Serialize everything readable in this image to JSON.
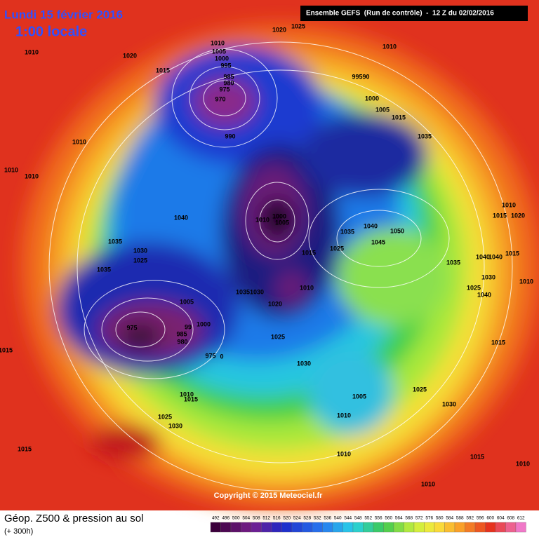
{
  "header": {
    "date": "Lundi 15 février 2016",
    "time": "1:00 locale",
    "run": "Ensemble GEFS  (Run de contrôle)  -  12 Z du 02/02/2016"
  },
  "copyright": "Copyright © 2015 Meteociel.fr",
  "footer": {
    "title": "Géop. Z500 & pression au sol",
    "lead": "(+ 300h)"
  },
  "scale": [
    492,
    496,
    500,
    504,
    508,
    512,
    516,
    520,
    524,
    528,
    532,
    536,
    540,
    544,
    548,
    552,
    556,
    560,
    564,
    568,
    572,
    576,
    580,
    584,
    588,
    592,
    596,
    600,
    604,
    608,
    612
  ],
  "isobar_labels": [
    "1010",
    "1020",
    "1015",
    "1020",
    "1025",
    "1010",
    "1010",
    "1005",
    "1000",
    "995",
    "985",
    "980",
    "975",
    "970",
    "990",
    "99590",
    "1000",
    "1005",
    "1015",
    "1035",
    "1010",
    "1010",
    "1010",
    "1040",
    "1000",
    "1010",
    "1005",
    "1035",
    "1040",
    "1050",
    "1045",
    "1025",
    "1015",
    "1035",
    "1030",
    "1025",
    "1035",
    "1035",
    "1035",
    "1030",
    "1010",
    "1020",
    "1005",
    "1000",
    "99",
    "985",
    "980",
    "975",
    "975",
    "0",
    "1025",
    "1030",
    "1005",
    "1010",
    "1010",
    "1025",
    "1030",
    "1010",
    "1015",
    "1025",
    "1030",
    "1015",
    "1010",
    "1015",
    "1010",
    "1015",
    "1010",
    "1020",
    "1015",
    "1040",
    "1040",
    "1015",
    "1010",
    "1030",
    "1025",
    "1040",
    "1015"
  ]
}
